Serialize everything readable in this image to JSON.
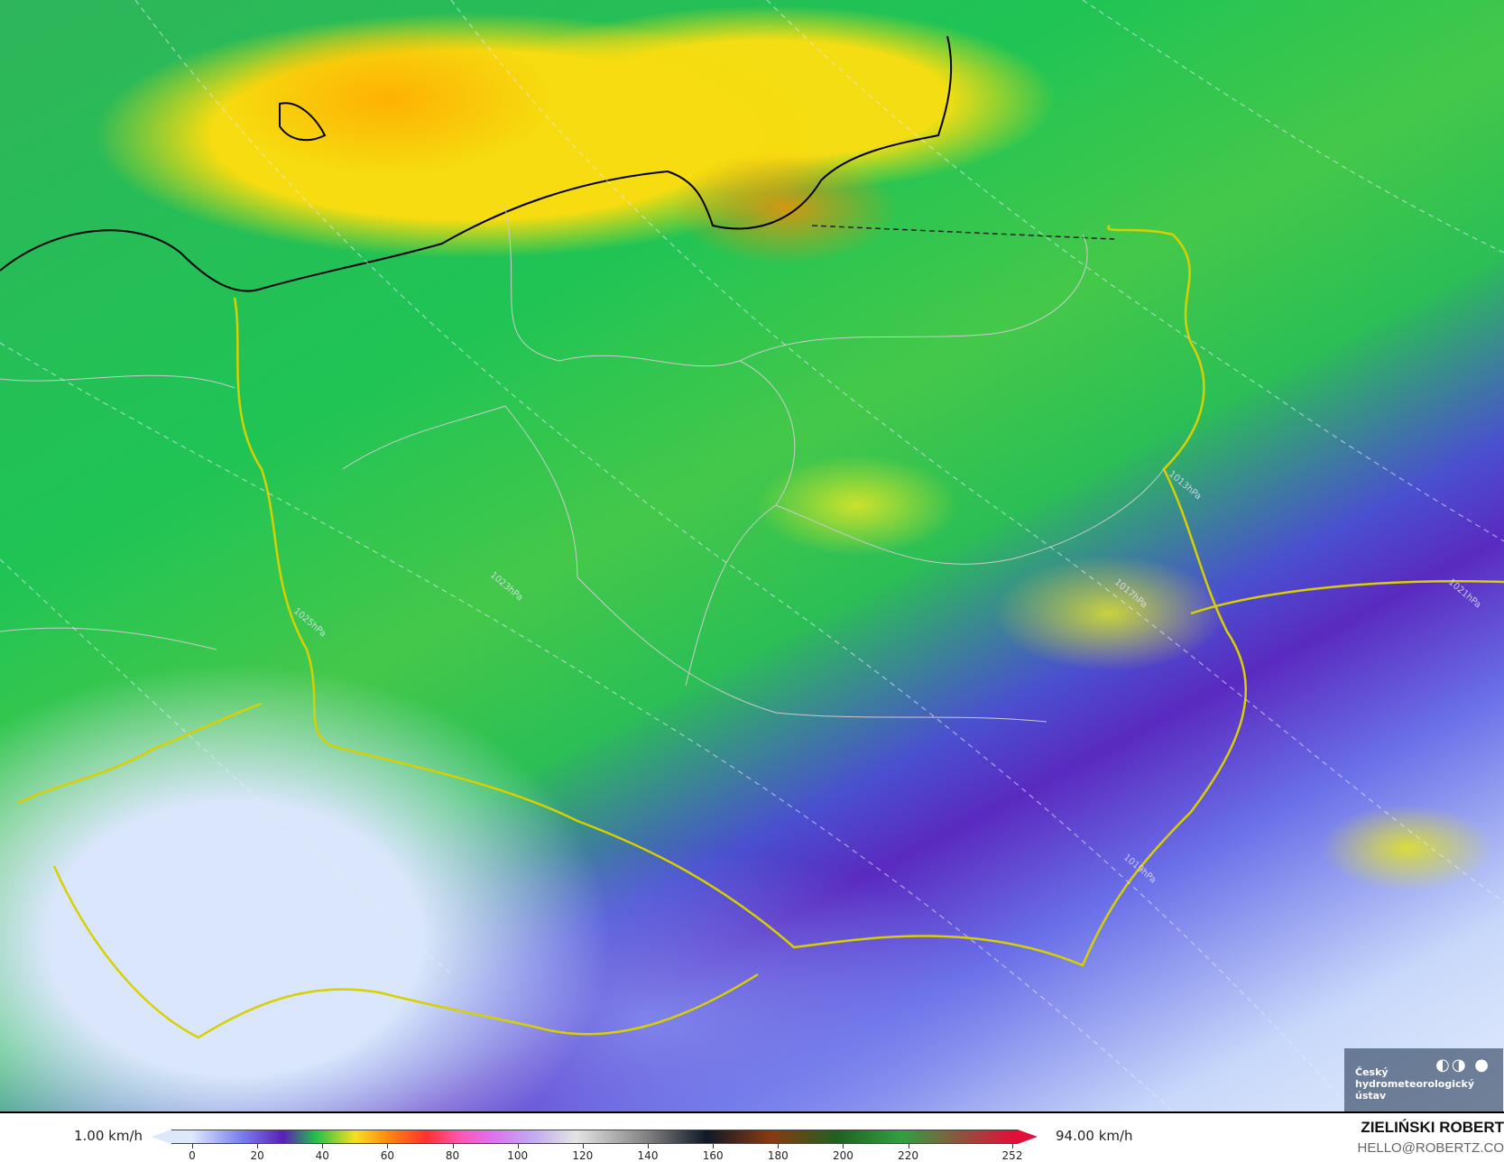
{
  "map": {
    "isobar_labels": [
      "1023hPa",
      "1025hPa",
      "1017hPa",
      "1019hPa",
      "1013hPa",
      "1021hPa"
    ],
    "logo": {
      "text": "Český\nhydrometeorologický\nústav",
      "symbol": "◐◑ ●"
    }
  },
  "colorbar": {
    "min_label": "1.00 km/h",
    "max_label": "94.00 km/h",
    "ticks": [
      "0",
      "20",
      "40",
      "60",
      "80",
      "100",
      "120",
      "140",
      "160",
      "180",
      "200",
      "220",
      "252"
    ],
    "tick_values": [
      0,
      20,
      40,
      60,
      80,
      100,
      120,
      140,
      160,
      180,
      200,
      220,
      252
    ],
    "range": [
      0,
      252
    ],
    "colors": {
      "0": "#dde8fb",
      "15": "#7a80ee",
      "28": "#5a20b8",
      "38": "#22c04a",
      "50": "#f5e020",
      "60": "#ff8a10",
      "72": "#ff3030",
      "82": "#ff55b0",
      "92": "#e070f0",
      "104": "#c0a8f0",
      "118": "#e4e4e4",
      "140": "#808080",
      "158": "#101828",
      "178": "#8a3a10",
      "198": "#206020",
      "218": "#30a040",
      "252": "#e0103a"
    }
  },
  "credits": {
    "author": "ZIELIŃSKI ROBERT",
    "email": "HELLO@ROBERTZ.CO"
  }
}
